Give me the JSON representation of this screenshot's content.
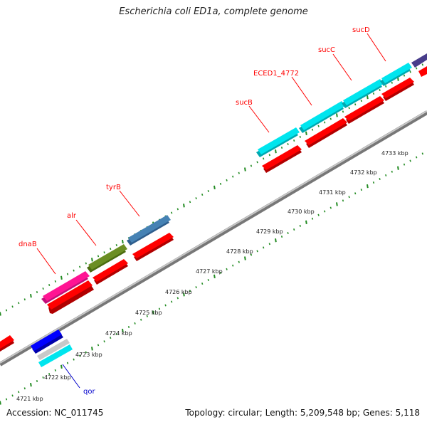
{
  "title": "Escherichia coli ED1a, complete genome",
  "footer": {
    "accession": "Accession: NC_011745",
    "summary": "Topology: circular; Length: 5,209,548 bp; Genes: 5,118"
  },
  "scale": {
    "labels": [
      "4721 kbp",
      "4722 kbp",
      "4723 kbp",
      "4724 kbp",
      "4725 kbp",
      "4726 kbp",
      "4727 kbp",
      "4728 kbp",
      "4729 kbp",
      "4730 kbp",
      "4731 kbp",
      "4732 kbp",
      "4733 kbp"
    ]
  },
  "genes": [
    {
      "name": "dnaB",
      "color": "#ff1493"
    },
    {
      "name": "alr",
      "color": "#6b8e23"
    },
    {
      "name": "tyrB",
      "color": "#4682b4"
    },
    {
      "name": "sucB",
      "color": "#00e5ee"
    },
    {
      "name": "ECED1_4772",
      "color": "#00e5ee"
    },
    {
      "name": "sucC",
      "color": "#00e5ee"
    },
    {
      "name": "sucD",
      "color": "#00e5ee"
    },
    {
      "name": "qor",
      "color": "#0000ff"
    }
  ],
  "colors": {
    "cds": "#ff0000",
    "forward_label": "#ff0000",
    "reverse_label": "#0000cc",
    "tick": "#228b22",
    "backbone": "#888888"
  }
}
